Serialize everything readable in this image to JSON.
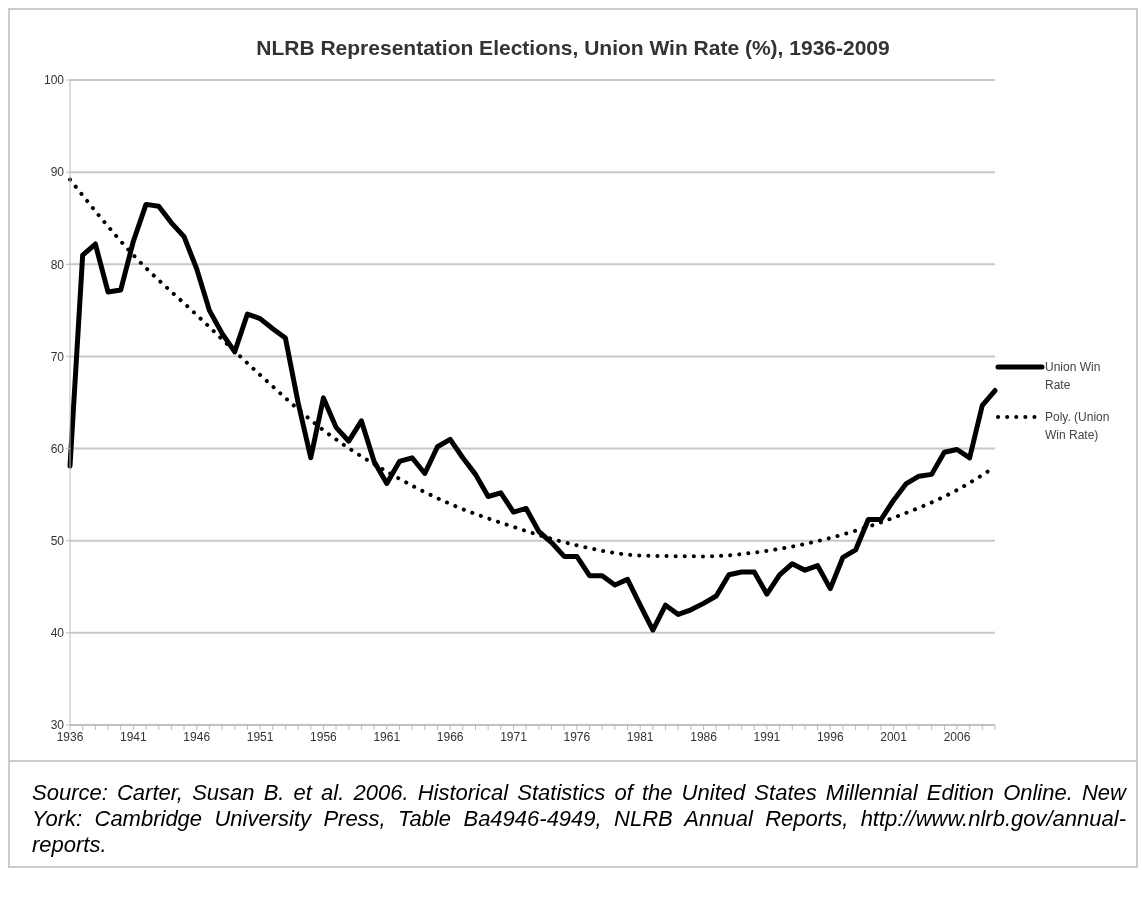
{
  "chart_data": {
    "type": "line",
    "title": "NLRB Representation Elections, Union Win Rate (%), 1936-2009",
    "categories": [
      "1936",
      null,
      null,
      null,
      null,
      "1941",
      null,
      null,
      null,
      null,
      "1946",
      null,
      null,
      null,
      null,
      "1951",
      null,
      null,
      null,
      null,
      "1956",
      null,
      null,
      null,
      null,
      "1961",
      null,
      null,
      null,
      null,
      "1966",
      null,
      null,
      null,
      null,
      "1971",
      null,
      null,
      null,
      null,
      "1976",
      null,
      null,
      null,
      null,
      "1981",
      null,
      null,
      null,
      null,
      "1986",
      null,
      null,
      null,
      null,
      "1991",
      null,
      null,
      null,
      null,
      "1996",
      null,
      null,
      null,
      null,
      "2001",
      null,
      null,
      null,
      null,
      "2006",
      null,
      null,
      null
    ],
    "series": [
      {
        "name": "Union Win Rate",
        "color": "#000000",
        "line_style": "solid",
        "values": [
          58.1,
          81,
          82.2,
          77,
          77.2,
          82.5,
          86.5,
          86.3,
          84.5,
          83,
          79.5,
          75,
          72.5,
          70.5,
          74.6,
          74.1,
          73,
          72,
          65,
          59,
          65.5,
          62.3,
          60.8,
          63,
          58.6,
          56.2,
          58.6,
          59,
          57.3,
          60.2,
          61,
          59,
          57.2,
          54.8,
          55.2,
          53.1,
          53.5,
          51,
          49.8,
          48.3,
          48.3,
          46.2,
          46.2,
          45.2,
          45.8,
          43,
          40.3,
          43,
          42,
          42.5,
          43.2,
          44,
          46.3,
          46.6,
          46.6,
          44.2,
          46.3,
          47.5,
          46.8,
          47.3,
          44.8,
          48.2,
          49,
          52.3,
          52.3,
          54.4,
          56.2,
          57,
          57.2,
          59.6,
          59.9,
          59,
          64.7,
          66.3
        ]
      },
      {
        "name": "Poly. (Union Win Rate)",
        "color": "#000000",
        "line_style": "dotted",
        "values": [
          89.2,
          null,
          null,
          null,
          null,
          81,
          null,
          null,
          null,
          null,
          74.5,
          null,
          null,
          null,
          null,
          68,
          null,
          null,
          null,
          null,
          62,
          null,
          null,
          null,
          null,
          57.5,
          null,
          null,
          null,
          null,
          54,
          null,
          null,
          null,
          null,
          51.5,
          null,
          null,
          null,
          null,
          49.5,
          null,
          null,
          null,
          null,
          48.4,
          null,
          null,
          null,
          null,
          48.3,
          null,
          null,
          null,
          null,
          48.9,
          null,
          null,
          null,
          null,
          50.3,
          null,
          null,
          null,
          null,
          52.5,
          null,
          null,
          null,
          null,
          55.5,
          null,
          null,
          58
        ]
      }
    ],
    "ylim": [
      30,
      100
    ],
    "yticks": [
      30,
      40,
      50,
      60,
      70,
      80,
      90,
      100
    ],
    "grid": "y",
    "legend": "right",
    "marker": "none",
    "annotations": [
      "Source: Carter, Susan B. et al. 2006. Historical Statistics of the United States Millennial Edition Online. New York: Cambridge University Press, Table Ba4946-4949, NLRB Annual Reports, http://www.nlrb.gov/annual-reports."
    ]
  }
}
